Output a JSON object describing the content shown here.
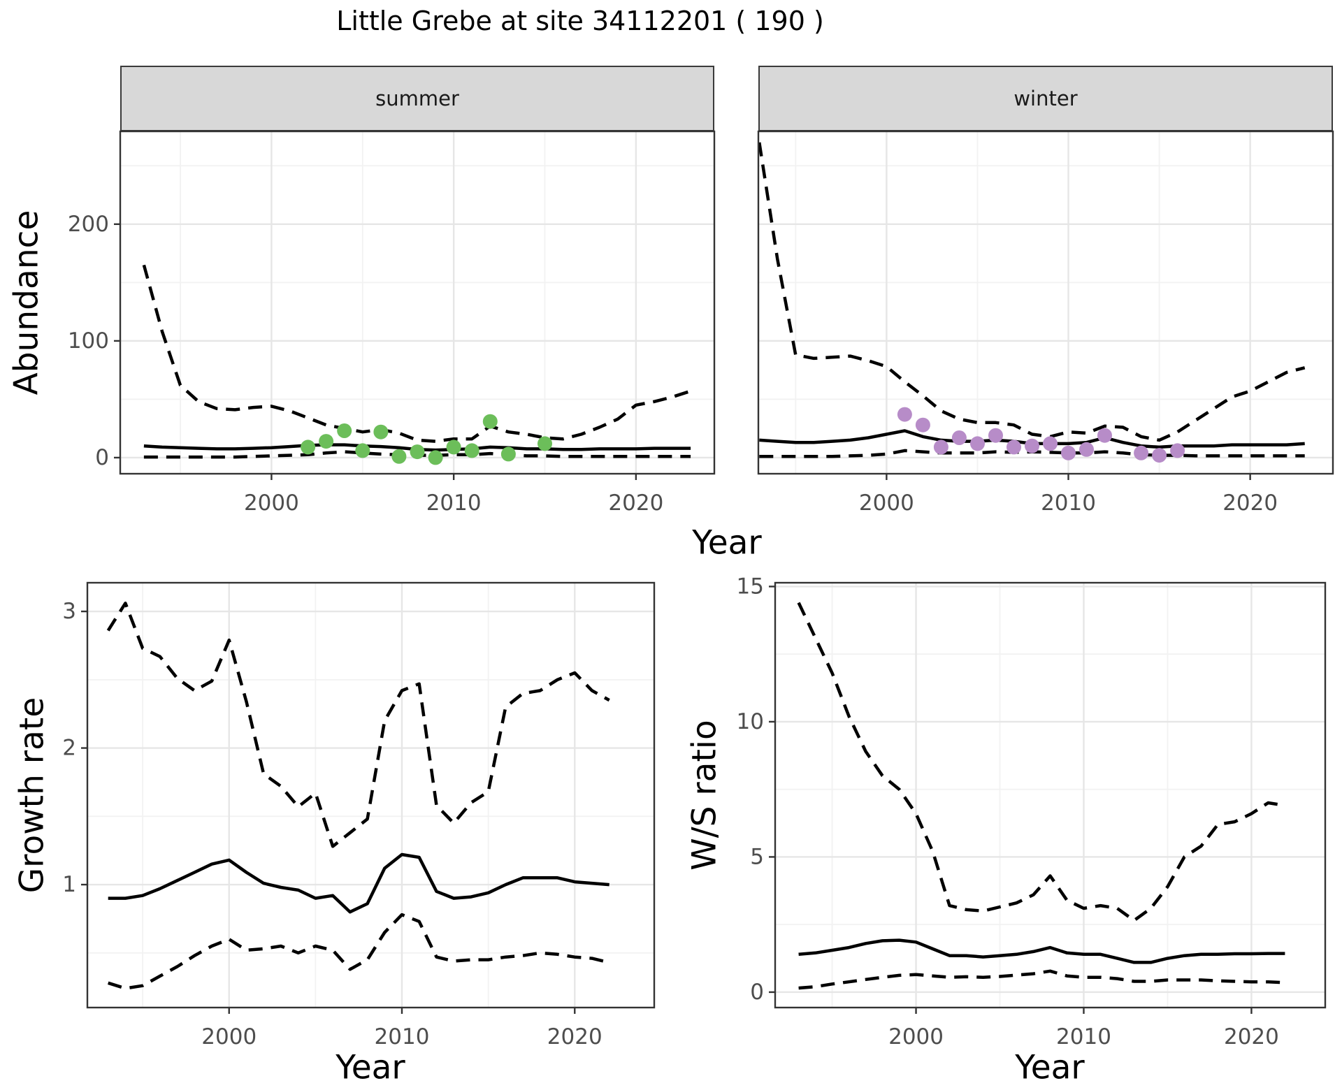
{
  "title": "Little Grebe at site 34112201 ( 190 )",
  "axis": {
    "shared_x_label": "Year"
  },
  "colors": {
    "summer_point": "#6cbe5a",
    "winter_point": "#b78cc8",
    "line": "#000000",
    "grid_major": "#e6e6e6",
    "grid_minor": "#f2f2f2",
    "panel_border": "#333333",
    "tick": "#333333",
    "strip_bg": "#d8d8d8",
    "axis_text": "#4d4d4d"
  },
  "chart_data": [
    {
      "id": "abundance_summer",
      "type": "line",
      "facet_label": "summer",
      "ylabel": "Abundance",
      "xlabel": "Year",
      "xlim": [
        1991.7,
        2024.3
      ],
      "ylim": [
        -13.8,
        279.5
      ],
      "xticks": {
        "major": [
          2000,
          2010,
          2020
        ],
        "minor": [
          1995,
          2005,
          2015
        ],
        "labels": [
          "2000",
          "2010",
          "2020"
        ]
      },
      "yticks": {
        "major": [
          0,
          100,
          200
        ],
        "minor": [
          50,
          150,
          250
        ],
        "labels": [
          "0",
          "100",
          "200"
        ],
        "show_labels": true
      },
      "x": [
        1993,
        1994,
        1995,
        1996,
        1997,
        1998,
        1999,
        2000,
        2001,
        2002,
        2003,
        2004,
        2005,
        2006,
        2007,
        2008,
        2009,
        2010,
        2011,
        2012,
        2013,
        2014,
        2015,
        2016,
        2017,
        2018,
        2019,
        2020,
        2021,
        2022,
        2023
      ],
      "series": [
        {
          "name": "upper_ci",
          "style": "dashed",
          "values": [
            165,
            108,
            62,
            48,
            42,
            41,
            43,
            44,
            40,
            34,
            28,
            25,
            22,
            24,
            21,
            15,
            14,
            16,
            16,
            27,
            22,
            20,
            17,
            16,
            20,
            26,
            33,
            45,
            48,
            52,
            57
          ]
        },
        {
          "name": "estimate",
          "style": "solid",
          "values": [
            10,
            9,
            8.5,
            8,
            7.5,
            7.5,
            8,
            8.5,
            9.5,
            10.5,
            11,
            11,
            10,
            9.5,
            8.5,
            7,
            6.5,
            7,
            7.5,
            9,
            8.5,
            7.5,
            7.5,
            7,
            7,
            7.5,
            7.5,
            7.5,
            8,
            8,
            8
          ]
        },
        {
          "name": "lower_ci",
          "style": "dashed",
          "values": [
            0.5,
            0.5,
            0.5,
            0.5,
            0.5,
            0.5,
            1,
            1.5,
            2,
            2.5,
            4,
            5,
            4,
            3,
            2.5,
            2,
            2,
            2.5,
            2.5,
            3.5,
            2.5,
            1.5,
            1.5,
            1,
            1,
            1,
            1,
            1,
            1,
            1,
            1
          ]
        }
      ],
      "points": {
        "name": "observed_counts",
        "color_key": "summer_point",
        "x": [
          2002,
          2003,
          2004,
          2005,
          2006,
          2007,
          2008,
          2009,
          2010,
          2011,
          2012,
          2013,
          2015
        ],
        "y": [
          9,
          14,
          23,
          6,
          22,
          1,
          5,
          0,
          9,
          6,
          31,
          3,
          12
        ]
      }
    },
    {
      "id": "abundance_winter",
      "type": "line",
      "facet_label": "winter",
      "ylabel": "",
      "xlabel": "Year",
      "xlim": [
        1992.95,
        2024.55
      ],
      "ylim": [
        -13.8,
        279.5
      ],
      "xticks": {
        "major": [
          2000,
          2010,
          2020
        ],
        "minor": [
          1995,
          2005,
          2015
        ],
        "labels": [
          "2000",
          "2010",
          "2020"
        ]
      },
      "yticks": {
        "major": [
          0,
          100,
          200
        ],
        "minor": [
          50,
          150,
          250
        ],
        "labels": [
          "0",
          "100",
          "200"
        ],
        "show_labels": false
      },
      "x": [
        1993,
        1994,
        1995,
        1996,
        1997,
        1998,
        1999,
        2000,
        2001,
        2002,
        2003,
        2004,
        2005,
        2006,
        2007,
        2008,
        2009,
        2010,
        2011,
        2012,
        2013,
        2014,
        2015,
        2016,
        2017,
        2018,
        2019,
        2020,
        2021,
        2022,
        2023
      ],
      "series": [
        {
          "name": "upper_ci",
          "style": "dashed",
          "values": [
            270,
            170,
            88,
            85,
            86,
            87,
            83,
            78,
            65,
            53,
            40,
            33,
            30,
            30,
            28,
            20,
            18,
            22,
            21,
            27,
            26,
            18,
            15,
            22,
            32,
            42,
            52,
            57,
            65,
            73,
            77
          ]
        },
        {
          "name": "estimate",
          "style": "solid",
          "values": [
            15,
            14,
            13,
            13,
            14,
            15,
            17,
            20,
            23,
            18,
            15,
            14,
            14,
            15,
            14,
            12,
            12,
            12,
            13,
            17,
            13,
            10,
            9,
            10,
            10,
            10,
            11,
            11,
            11,
            11,
            12
          ]
        },
        {
          "name": "lower_ci",
          "style": "dashed",
          "values": [
            1,
            1,
            1,
            1,
            1,
            1.5,
            2,
            3,
            6,
            5,
            4,
            4,
            4,
            5,
            4.5,
            5,
            4.5,
            4,
            4,
            5,
            4,
            2.5,
            2,
            2,
            1.5,
            1.5,
            1.5,
            1.5,
            1.5,
            1.5,
            1.5
          ]
        }
      ],
      "points": {
        "name": "observed_counts",
        "color_key": "winter_point",
        "x": [
          2001,
          2002,
          2003,
          2004,
          2005,
          2006,
          2007,
          2008,
          2009,
          2010,
          2011,
          2012,
          2014,
          2015,
          2016
        ],
        "y": [
          37,
          28,
          9,
          17,
          12,
          19,
          9,
          10,
          12,
          4,
          7,
          19,
          4,
          2,
          6
        ]
      }
    },
    {
      "id": "growth_rate",
      "type": "line",
      "facet_label": "",
      "ylabel": "Growth rate",
      "xlabel": "Year",
      "xlim": [
        1991.8,
        2024.6
      ],
      "ylim": [
        0.1,
        3.21
      ],
      "xticks": {
        "major": [
          2000,
          2010,
          2020
        ],
        "minor": [
          1995,
          2005,
          2015
        ],
        "labels": [
          "2000",
          "2010",
          "2020"
        ]
      },
      "yticks": {
        "major": [
          1,
          2,
          3
        ],
        "minor": [
          0.5,
          1.5,
          2.5
        ],
        "labels": [
          "1",
          "2",
          "3"
        ],
        "show_labels": true
      },
      "x": [
        1993,
        1994,
        1995,
        1996,
        1997,
        1998,
        1999,
        2000,
        2001,
        2002,
        2003,
        2004,
        2005,
        2006,
        2007,
        2008,
        2009,
        2010,
        2011,
        2012,
        2013,
        2014,
        2015,
        2016,
        2017,
        2018,
        2019,
        2020,
        2021,
        2022
      ],
      "series": [
        {
          "name": "upper_ci",
          "style": "dashed",
          "values": [
            2.86,
            3.06,
            2.73,
            2.67,
            2.51,
            2.42,
            2.49,
            2.79,
            2.34,
            1.81,
            1.72,
            1.57,
            1.67,
            1.28,
            1.38,
            1.48,
            2.2,
            2.42,
            2.47,
            1.58,
            1.45,
            1.6,
            1.68,
            2.3,
            2.4,
            2.42,
            2.5,
            2.55,
            2.42,
            2.35
          ]
        },
        {
          "name": "estimate",
          "style": "solid",
          "values": [
            0.9,
            0.9,
            0.92,
            0.97,
            1.03,
            1.09,
            1.15,
            1.18,
            1.09,
            1.01,
            0.98,
            0.96,
            0.9,
            0.92,
            0.8,
            0.86,
            1.12,
            1.22,
            1.2,
            0.95,
            0.9,
            0.91,
            0.94,
            1.0,
            1.05,
            1.05,
            1.05,
            1.02,
            1.01,
            1.0
          ]
        },
        {
          "name": "lower_ci",
          "style": "dashed",
          "values": [
            0.28,
            0.24,
            0.26,
            0.33,
            0.4,
            0.48,
            0.55,
            0.6,
            0.52,
            0.53,
            0.55,
            0.5,
            0.55,
            0.52,
            0.38,
            0.45,
            0.65,
            0.78,
            0.73,
            0.47,
            0.44,
            0.45,
            0.45,
            0.47,
            0.48,
            0.5,
            0.49,
            0.47,
            0.46,
            0.43
          ]
        }
      ],
      "points": null
    },
    {
      "id": "ws_ratio",
      "type": "line",
      "facet_label": "",
      "ylabel": "W/S ratio",
      "xlabel": "Year",
      "xlim": [
        1991.6,
        2024.4
      ],
      "ylim": [
        -0.57,
        15.14
      ],
      "xticks": {
        "major": [
          2000,
          2010,
          2020
        ],
        "minor": [
          1995,
          2005,
          2015
        ],
        "labels": [
          "2000",
          "2010",
          "2020"
        ]
      },
      "yticks": {
        "major": [
          0,
          5,
          10,
          15
        ],
        "minor": [
          2.5,
          7.5,
          12.5
        ],
        "labels": [
          "0",
          "5",
          "10",
          "15"
        ],
        "show_labels": true
      },
      "x": [
        1993,
        1994,
        1995,
        1996,
        1997,
        1998,
        1999,
        2000,
        2001,
        2002,
        2003,
        2004,
        2005,
        2006,
        2007,
        2008,
        2009,
        2010,
        2011,
        2012,
        2013,
        2014,
        2015,
        2016,
        2017,
        2018,
        2019,
        2020,
        2021,
        2022
      ],
      "series": [
        {
          "name": "upper_ci",
          "style": "dashed",
          "values": [
            14.4,
            13.1,
            11.8,
            10.2,
            8.9,
            8.0,
            7.5,
            6.6,
            5.2,
            3.2,
            3.05,
            3.0,
            3.15,
            3.3,
            3.6,
            4.3,
            3.4,
            3.1,
            3.2,
            3.1,
            2.65,
            3.1,
            3.9,
            5.0,
            5.4,
            6.2,
            6.3,
            6.6,
            7.0,
            6.9
          ]
        },
        {
          "name": "estimate",
          "style": "solid",
          "values": [
            1.4,
            1.45,
            1.55,
            1.65,
            1.8,
            1.9,
            1.92,
            1.85,
            1.6,
            1.35,
            1.35,
            1.3,
            1.35,
            1.4,
            1.5,
            1.65,
            1.45,
            1.4,
            1.4,
            1.25,
            1.1,
            1.1,
            1.25,
            1.35,
            1.4,
            1.4,
            1.42,
            1.42,
            1.43,
            1.43
          ]
        },
        {
          "name": "lower_ci",
          "style": "dashed",
          "values": [
            0.15,
            0.2,
            0.3,
            0.38,
            0.47,
            0.55,
            0.62,
            0.65,
            0.6,
            0.55,
            0.57,
            0.55,
            0.58,
            0.63,
            0.68,
            0.78,
            0.6,
            0.55,
            0.55,
            0.5,
            0.4,
            0.4,
            0.45,
            0.45,
            0.45,
            0.42,
            0.4,
            0.38,
            0.38,
            0.35
          ]
        }
      ],
      "points": null
    }
  ]
}
